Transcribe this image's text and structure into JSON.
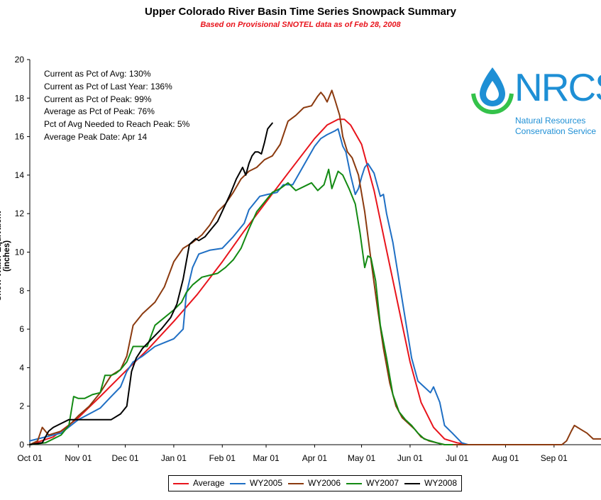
{
  "title": "Upper Colorado River Basin Time Series Snowpack Summary",
  "subtitle": "Based on Provisional SNOTEL data as of Feb 28, 2008",
  "stats": [
    "Current as Pct of Avg: 130%",
    "Current as Pct of Last Year: 136%",
    "Current as Pct of Peak: 99%",
    "Average as Pct of Peak: 76%",
    "Pct of Avg Needed to Reach Peak: 5%",
    "Average Peak Date: Apr 14"
  ],
  "logo": {
    "name": "NRCS",
    "line1": "Natural Resources",
    "line2": "Conservation Service"
  },
  "colors": {
    "Average": "#e8141c",
    "WY2005": "#1f6fc4",
    "WY2006": "#8b3a0f",
    "WY2007": "#138a13",
    "WY2008": "#000000"
  },
  "chart_data": {
    "type": "line",
    "ylabel": "Snow Water Equivalent (inches)",
    "xlabel": "",
    "ylim": [
      0,
      20
    ],
    "yticks": [
      0,
      2,
      4,
      6,
      8,
      10,
      12,
      14,
      16,
      18,
      20
    ],
    "xlim": [
      0,
      365
    ],
    "xticks": [
      {
        "day": 0,
        "label": "Oct 01"
      },
      {
        "day": 31,
        "label": "Nov 01"
      },
      {
        "day": 61,
        "label": "Dec 01"
      },
      {
        "day": 92,
        "label": "Jan 01"
      },
      {
        "day": 123,
        "label": "Feb 01"
      },
      {
        "day": 151,
        "label": "Mar 01"
      },
      {
        "day": 182,
        "label": "Apr 01"
      },
      {
        "day": 212,
        "label": "May 01"
      },
      {
        "day": 243,
        "label": "Jun 01"
      },
      {
        "day": 273,
        "label": "Jul 01"
      },
      {
        "day": 304,
        "label": "Aug 01"
      },
      {
        "day": 335,
        "label": "Sep 01"
      }
    ],
    "grid": false,
    "legend": "bottom",
    "series": [
      {
        "name": "Average",
        "x": [
          0,
          15,
          31,
          45,
          61,
          76,
          92,
          107,
          123,
          137,
          151,
          165,
          182,
          190,
          197,
          201,
          205,
          212,
          220,
          228,
          236,
          243,
          250,
          258,
          265,
          273,
          280,
          290
        ],
        "y": [
          0.0,
          0.4,
          1.4,
          2.5,
          3.8,
          5.0,
          6.4,
          7.8,
          9.5,
          11.1,
          12.6,
          14.1,
          15.9,
          16.6,
          16.9,
          16.9,
          16.6,
          15.6,
          13.2,
          10.1,
          7.0,
          4.3,
          2.2,
          0.9,
          0.3,
          0.1,
          0.0,
          0.0
        ]
      },
      {
        "name": "WY2005",
        "x": [
          0,
          5,
          10,
          20,
          31,
          38,
          45,
          52,
          58,
          62,
          66,
          72,
          80,
          86,
          92,
          98,
          100,
          104,
          108,
          115,
          123,
          130,
          137,
          140,
          147,
          152,
          158,
          162,
          168,
          175,
          182,
          186,
          190,
          195,
          197,
          200,
          202,
          205,
          208,
          210,
          212,
          214,
          216,
          220,
          224,
          226,
          228,
          232,
          236,
          240,
          244,
          248,
          252,
          256,
          258,
          262,
          265,
          270,
          276,
          280
        ],
        "y": [
          0.2,
          0.3,
          0.4,
          0.6,
          1.3,
          1.6,
          1.9,
          2.5,
          3.0,
          3.8,
          4.3,
          4.6,
          5.1,
          5.3,
          5.5,
          6.0,
          7.8,
          9.2,
          9.9,
          10.1,
          10.2,
          10.8,
          11.5,
          12.2,
          12.9,
          13.0,
          13.1,
          13.5,
          13.5,
          14.5,
          15.5,
          15.9,
          16.1,
          16.3,
          16.4,
          15.5,
          15.2,
          14.0,
          13.0,
          13.3,
          13.9,
          14.4,
          14.6,
          14.1,
          12.9,
          13.0,
          12.0,
          10.5,
          8.5,
          6.5,
          4.5,
          3.3,
          3.0,
          2.7,
          3.0,
          2.2,
          1.0,
          0.6,
          0.1,
          0.0
        ]
      },
      {
        "name": "WY2006",
        "x": [
          0,
          5,
          8,
          12,
          20,
          25,
          31,
          38,
          45,
          52,
          58,
          62,
          66,
          72,
          80,
          86,
          92,
          98,
          104,
          110,
          115,
          120,
          125,
          130,
          135,
          140,
          145,
          150,
          155,
          160,
          165,
          170,
          175,
          180,
          184,
          186,
          188,
          190,
          193,
          195,
          198,
          200,
          203,
          206,
          210,
          214,
          218,
          222,
          226,
          230,
          234,
          238,
          242,
          246,
          250,
          255,
          260,
          265,
          340,
          343,
          346,
          348,
          352,
          356,
          360,
          365
        ],
        "y": [
          0.0,
          0.2,
          0.9,
          0.5,
          0.7,
          1.0,
          1.5,
          2.0,
          2.7,
          3.6,
          3.9,
          4.6,
          6.2,
          6.8,
          7.4,
          8.2,
          9.5,
          10.2,
          10.5,
          10.9,
          11.4,
          12.1,
          12.5,
          13.1,
          13.8,
          14.2,
          14.4,
          14.8,
          15.0,
          15.6,
          16.8,
          17.1,
          17.5,
          17.6,
          18.1,
          18.3,
          18.1,
          17.8,
          18.4,
          17.9,
          17.1,
          16.0,
          15.2,
          14.9,
          14.0,
          12.1,
          9.6,
          7.2,
          5.0,
          3.2,
          2.0,
          1.4,
          1.1,
          0.8,
          0.4,
          0.2,
          0.1,
          0.0,
          0.0,
          0.2,
          0.7,
          1.0,
          0.8,
          0.6,
          0.3,
          0.3
        ]
      },
      {
        "name": "WY2007",
        "x": [
          0,
          10,
          20,
          25,
          28,
          31,
          35,
          40,
          45,
          48,
          52,
          55,
          58,
          62,
          66,
          70,
          75,
          80,
          86,
          92,
          97,
          100,
          104,
          110,
          115,
          120,
          125,
          130,
          135,
          140,
          145,
          150,
          155,
          160,
          165,
          170,
          175,
          180,
          184,
          188,
          191,
          193,
          197,
          200,
          204,
          208,
          211,
          214,
          216,
          218,
          221,
          224,
          228,
          232,
          236,
          240,
          244,
          248,
          252,
          256,
          260,
          265,
          270
        ],
        "y": [
          0.0,
          0.1,
          0.5,
          1.0,
          2.5,
          2.4,
          2.4,
          2.6,
          2.7,
          3.6,
          3.6,
          3.7,
          3.9,
          4.3,
          5.1,
          5.1,
          5.1,
          6.2,
          6.6,
          7.0,
          7.4,
          7.9,
          8.3,
          8.7,
          8.8,
          8.9,
          9.2,
          9.6,
          10.2,
          11.2,
          12.1,
          12.6,
          13.1,
          13.3,
          13.6,
          13.2,
          13.4,
          13.6,
          13.2,
          13.5,
          14.3,
          13.3,
          14.2,
          14.0,
          13.3,
          12.5,
          11.0,
          9.2,
          9.8,
          9.7,
          8.5,
          6.2,
          4.5,
          2.6,
          1.7,
          1.3,
          1.0,
          0.6,
          0.3,
          0.2,
          0.1,
          0.0,
          0.0
        ]
      },
      {
        "name": "WY2008",
        "x": [
          0,
          8,
          12,
          15,
          20,
          25,
          31,
          38,
          45,
          52,
          58,
          62,
          65,
          68,
          72,
          78,
          84,
          90,
          94,
          98,
          102,
          106,
          108,
          112,
          116,
          120,
          124,
          128,
          132,
          136,
          138,
          140,
          142,
          144,
          146,
          148,
          150,
          152,
          154,
          155
        ],
        "y": [
          0.0,
          0.1,
          0.7,
          0.9,
          1.1,
          1.3,
          1.3,
          1.3,
          1.3,
          1.3,
          1.6,
          2.0,
          3.8,
          4.5,
          5.0,
          5.5,
          6.0,
          6.6,
          7.3,
          8.6,
          10.4,
          10.7,
          10.6,
          10.8,
          11.2,
          11.6,
          12.3,
          13.0,
          13.8,
          14.4,
          14.0,
          14.6,
          15.0,
          15.2,
          15.2,
          15.1,
          15.7,
          16.4,
          16.6,
          16.7
        ]
      }
    ]
  }
}
